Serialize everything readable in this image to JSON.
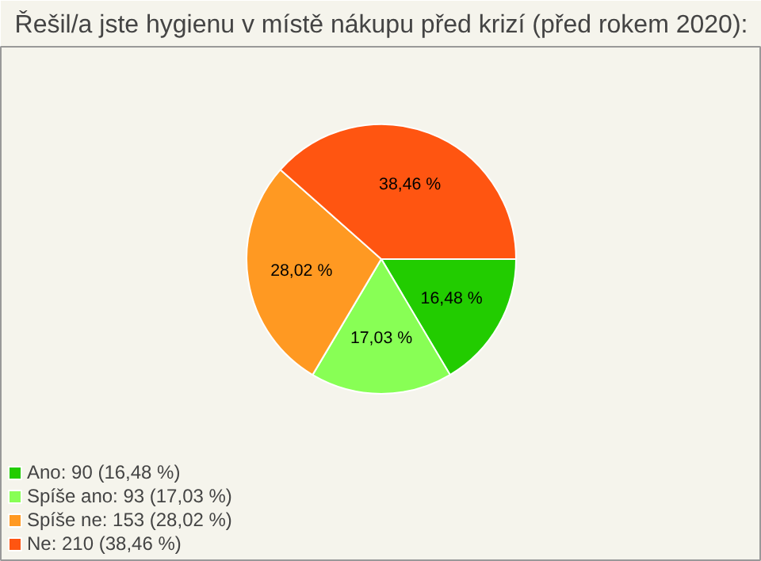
{
  "chart_data": {
    "type": "pie",
    "title": "Řešil/a jste hygienu v místě nákupu před krizí (před rokem 2020):",
    "categories": [
      "Ano: 90 (16,48 %)",
      "Spíše ano: 93 (17,03 %)",
      "Spíše ne: 153 (28,02 %)",
      "Ne: 210 (38,46 %)"
    ],
    "values": [
      16.48,
      17.03,
      28.02,
      38.46
    ],
    "value_labels": [
      "16,48 %",
      "17,03 %",
      "28,02 %",
      "38,46 %"
    ],
    "colors": [
      "#22cc00",
      "#88ff55",
      "#ff9922",
      "#ff5511"
    ],
    "legend": "bottom left"
  }
}
